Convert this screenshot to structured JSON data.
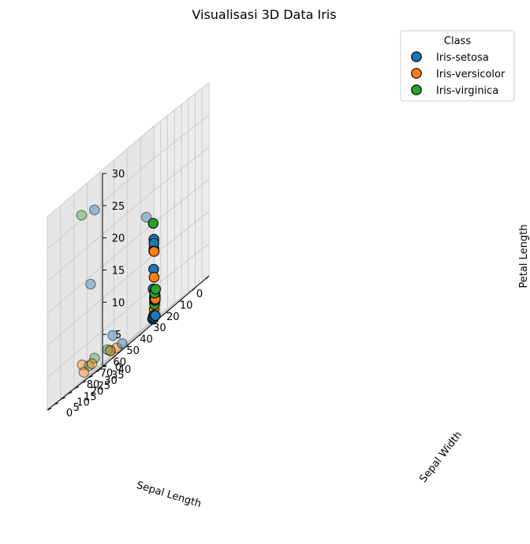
{
  "chart_data": {
    "type": "scatter",
    "projection": "3d",
    "title": "Visualisasi 3D Data Iris",
    "xlabel": "Sepal Length",
    "ylabel": "Sepal Width",
    "zlabel": "Petal Length",
    "xlim": [
      0,
      80
    ],
    "ylim": [
      0,
      40
    ],
    "zlim": [
      0,
      30
    ],
    "xticks": [
      "0",
      "10",
      "20",
      "30",
      "40",
      "50",
      "60",
      "70",
      "80"
    ],
    "yticks": [
      "0",
      "5",
      "10",
      "15",
      "20",
      "25",
      "30",
      "35",
      "40"
    ],
    "zticks": [
      "0",
      "5",
      "10",
      "15",
      "20",
      "25",
      "30"
    ],
    "grid": true,
    "legend": {
      "title": "Class",
      "placement": "top-right"
    },
    "series": [
      {
        "name": "Iris-setosa",
        "color": "#1f77b4",
        "points": [
          [
            0.8,
            1.2,
            0.4
          ],
          [
            1.0,
            0.8,
            0.2
          ],
          [
            1.2,
            1.5,
            0.6
          ],
          [
            0.5,
            0.5,
            0.3
          ],
          [
            1.5,
            1.0,
            0.5
          ],
          [
            0.7,
            1.8,
            0.4
          ],
          [
            1.3,
            0.4,
            0.2
          ],
          [
            0.9,
            1.1,
            0.7
          ],
          [
            1.1,
            0.6,
            4.8
          ],
          [
            0.8,
            0.7,
            7.8
          ],
          [
            0.9,
            0.9,
            10.6
          ],
          [
            0.6,
            0.7,
            11.0
          ],
          [
            0.7,
            0.8,
            11.8
          ],
          [
            0.5,
            0.6,
            12.4
          ],
          [
            17.0,
            11.0,
            17.0
          ],
          [
            57.0,
            12.0,
            25.0
          ],
          [
            62.0,
            14.0,
            14.0
          ],
          [
            30.0,
            6.0,
            0.5
          ],
          [
            36.0,
            5.0,
            3.0
          ]
        ]
      },
      {
        "name": "Iris-versicolor",
        "color": "#ff7f0e",
        "points": [
          [
            1.0,
            1.5,
            2.5
          ],
          [
            1.5,
            2.5,
            3.5
          ],
          [
            2.0,
            3.0,
            3.0
          ],
          [
            1.2,
            2.0,
            2.8
          ],
          [
            1.8,
            2.2,
            3.2
          ],
          [
            0.9,
            1.2,
            1.5
          ],
          [
            0.8,
            1.0,
            6.5
          ],
          [
            1.0,
            1.2,
            10.5
          ],
          [
            43.0,
            10.0,
            1.0
          ],
          [
            63.0,
            9.0,
            2.5
          ],
          [
            62.0,
            15.0,
            1.5
          ],
          [
            67.0,
            14.0,
            1.2
          ],
          [
            30.0,
            2.0,
            0.5
          ]
        ]
      },
      {
        "name": "Iris-virginica",
        "color": "#2ca02c",
        "points": [
          [
            1.5,
            2.0,
            3.0
          ],
          [
            2.5,
            3.0,
            4.2
          ],
          [
            3.0,
            3.5,
            4.0
          ],
          [
            2.0,
            2.5,
            3.5
          ],
          [
            1.2,
            1.8,
            2.2
          ],
          [
            2.8,
            4.0,
            4.5
          ],
          [
            1.5,
            1.0,
            15.0
          ],
          [
            75.0,
            20.0,
            26.0
          ],
          [
            59.0,
            14.0,
            2.0
          ],
          [
            60.0,
            11.0,
            1.5
          ],
          [
            42.0,
            7.0,
            1.5
          ],
          [
            37.0,
            4.0,
            1.0
          ]
        ]
      }
    ]
  }
}
